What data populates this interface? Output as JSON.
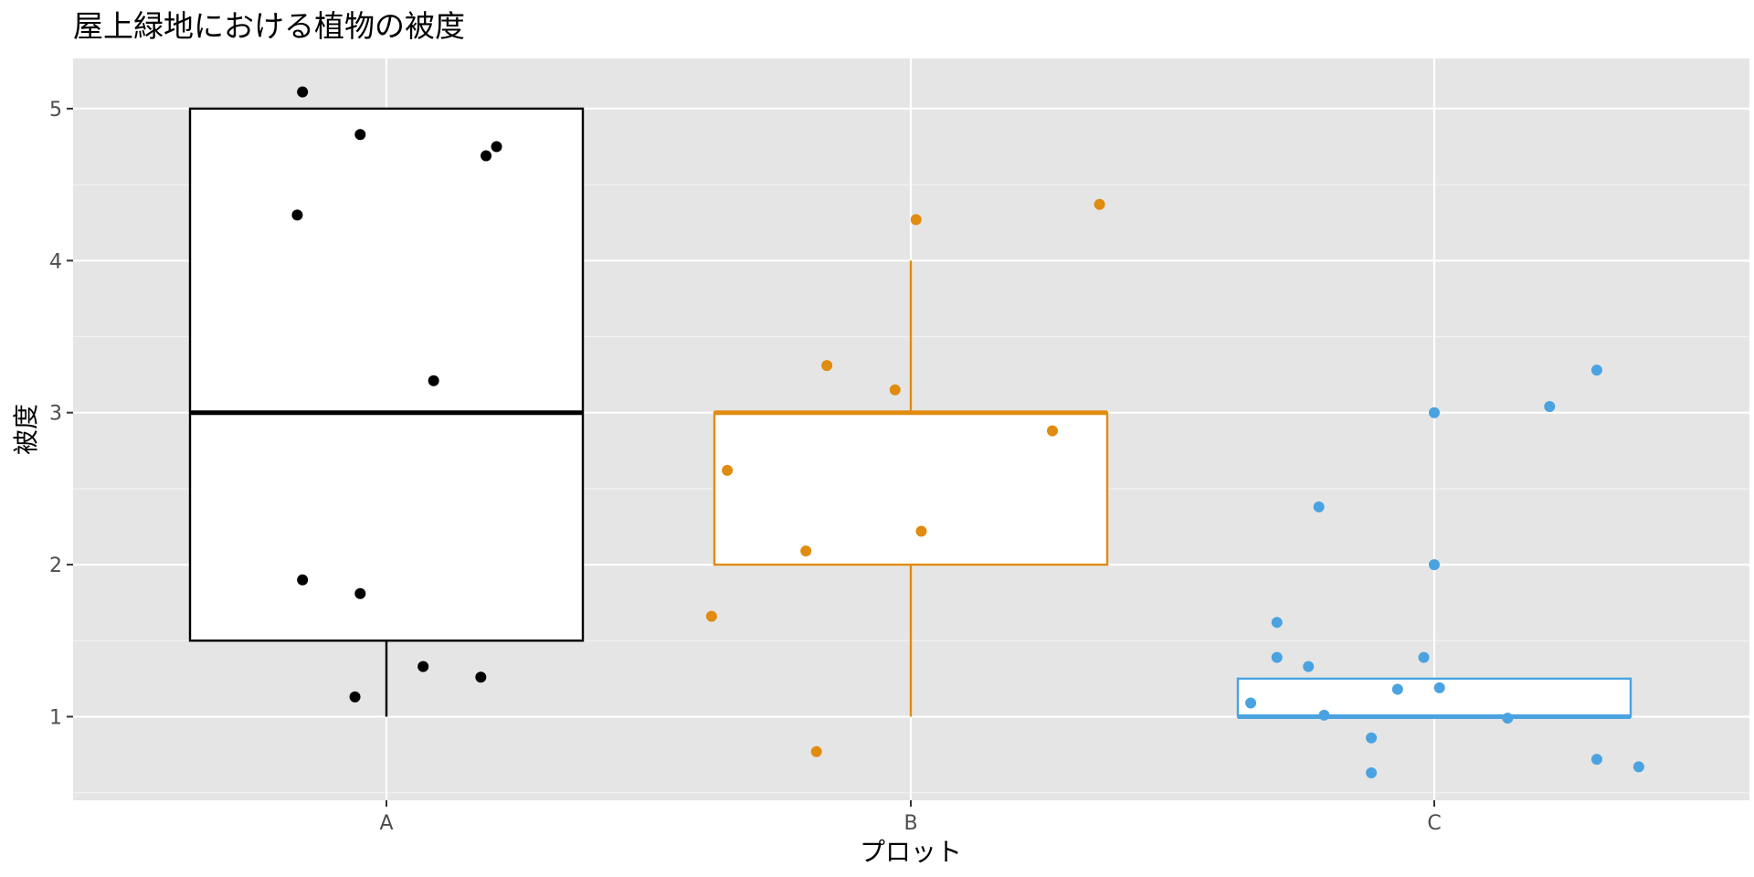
{
  "chart_data": {
    "type": "boxplot",
    "title": "屋上緑地における植物の被度",
    "xlabel": "プロット",
    "ylabel": "被度",
    "categories": [
      "A",
      "B",
      "C"
    ],
    "ylim": [
      0.45,
      5.33
    ],
    "yticks": [
      1,
      2,
      3,
      4,
      5
    ],
    "ytick_labels": [
      "1",
      "2",
      "3",
      "4",
      "5"
    ],
    "grid": true,
    "background": "#e5e5e5",
    "groups": [
      {
        "category": "A",
        "color": "#000000",
        "box": {
          "q1": 1.5,
          "median": 3.0,
          "q3": 5.0,
          "whisker_low": 1.0,
          "whisker_high": 5.0
        },
        "points": [
          {
            "x": -0.16,
            "y": 5.11
          },
          {
            "x": -0.05,
            "y": 4.83
          },
          {
            "x": 0.19,
            "y": 4.69
          },
          {
            "x": 0.21,
            "y": 4.75
          },
          {
            "x": -0.17,
            "y": 4.3
          },
          {
            "x": 0.09,
            "y": 3.21
          },
          {
            "x": -0.16,
            "y": 1.9
          },
          {
            "x": -0.05,
            "y": 1.81
          },
          {
            "x": 0.07,
            "y": 1.33
          },
          {
            "x": 0.18,
            "y": 1.26
          },
          {
            "x": -0.06,
            "y": 1.13
          }
        ]
      },
      {
        "category": "B",
        "color": "#e08c10",
        "box": {
          "q1": 2.0,
          "median": 3.0,
          "q3": 3.0,
          "whisker_low": 1.0,
          "whisker_high": 4.0
        },
        "points": [
          {
            "x": 0.01,
            "y": 4.27
          },
          {
            "x": 0.36,
            "y": 4.37
          },
          {
            "x": -0.16,
            "y": 3.31
          },
          {
            "x": -0.03,
            "y": 3.15
          },
          {
            "x": 0.27,
            "y": 2.88
          },
          {
            "x": -0.35,
            "y": 2.62
          },
          {
            "x": 0.02,
            "y": 2.22
          },
          {
            "x": -0.2,
            "y": 2.09
          },
          {
            "x": -0.38,
            "y": 1.66
          },
          {
            "x": -0.18,
            "y": 0.77
          }
        ]
      },
      {
        "category": "C",
        "color": "#4aa3e0",
        "box": {
          "q1": 1.0,
          "median": 1.0,
          "q3": 1.25,
          "whisker_low": 1.0,
          "whisker_high": 1.25
        },
        "points": [
          {
            "x": 0.31,
            "y": 3.28
          },
          {
            "x": 0.22,
            "y": 3.04
          },
          {
            "x": 0.0,
            "y": 3.0
          },
          {
            "x": -0.22,
            "y": 2.38
          },
          {
            "x": 0.0,
            "y": 2.0
          },
          {
            "x": -0.3,
            "y": 1.62
          },
          {
            "x": -0.3,
            "y": 1.39
          },
          {
            "x": -0.24,
            "y": 1.33
          },
          {
            "x": -0.02,
            "y": 1.39
          },
          {
            "x": -0.07,
            "y": 1.18
          },
          {
            "x": 0.01,
            "y": 1.19
          },
          {
            "x": -0.35,
            "y": 1.09
          },
          {
            "x": -0.21,
            "y": 1.01
          },
          {
            "x": 0.14,
            "y": 0.99
          },
          {
            "x": -0.12,
            "y": 0.86
          },
          {
            "x": 0.31,
            "y": 0.72
          },
          {
            "x": 0.39,
            "y": 0.67
          },
          {
            "x": -0.12,
            "y": 0.63
          }
        ]
      }
    ]
  }
}
